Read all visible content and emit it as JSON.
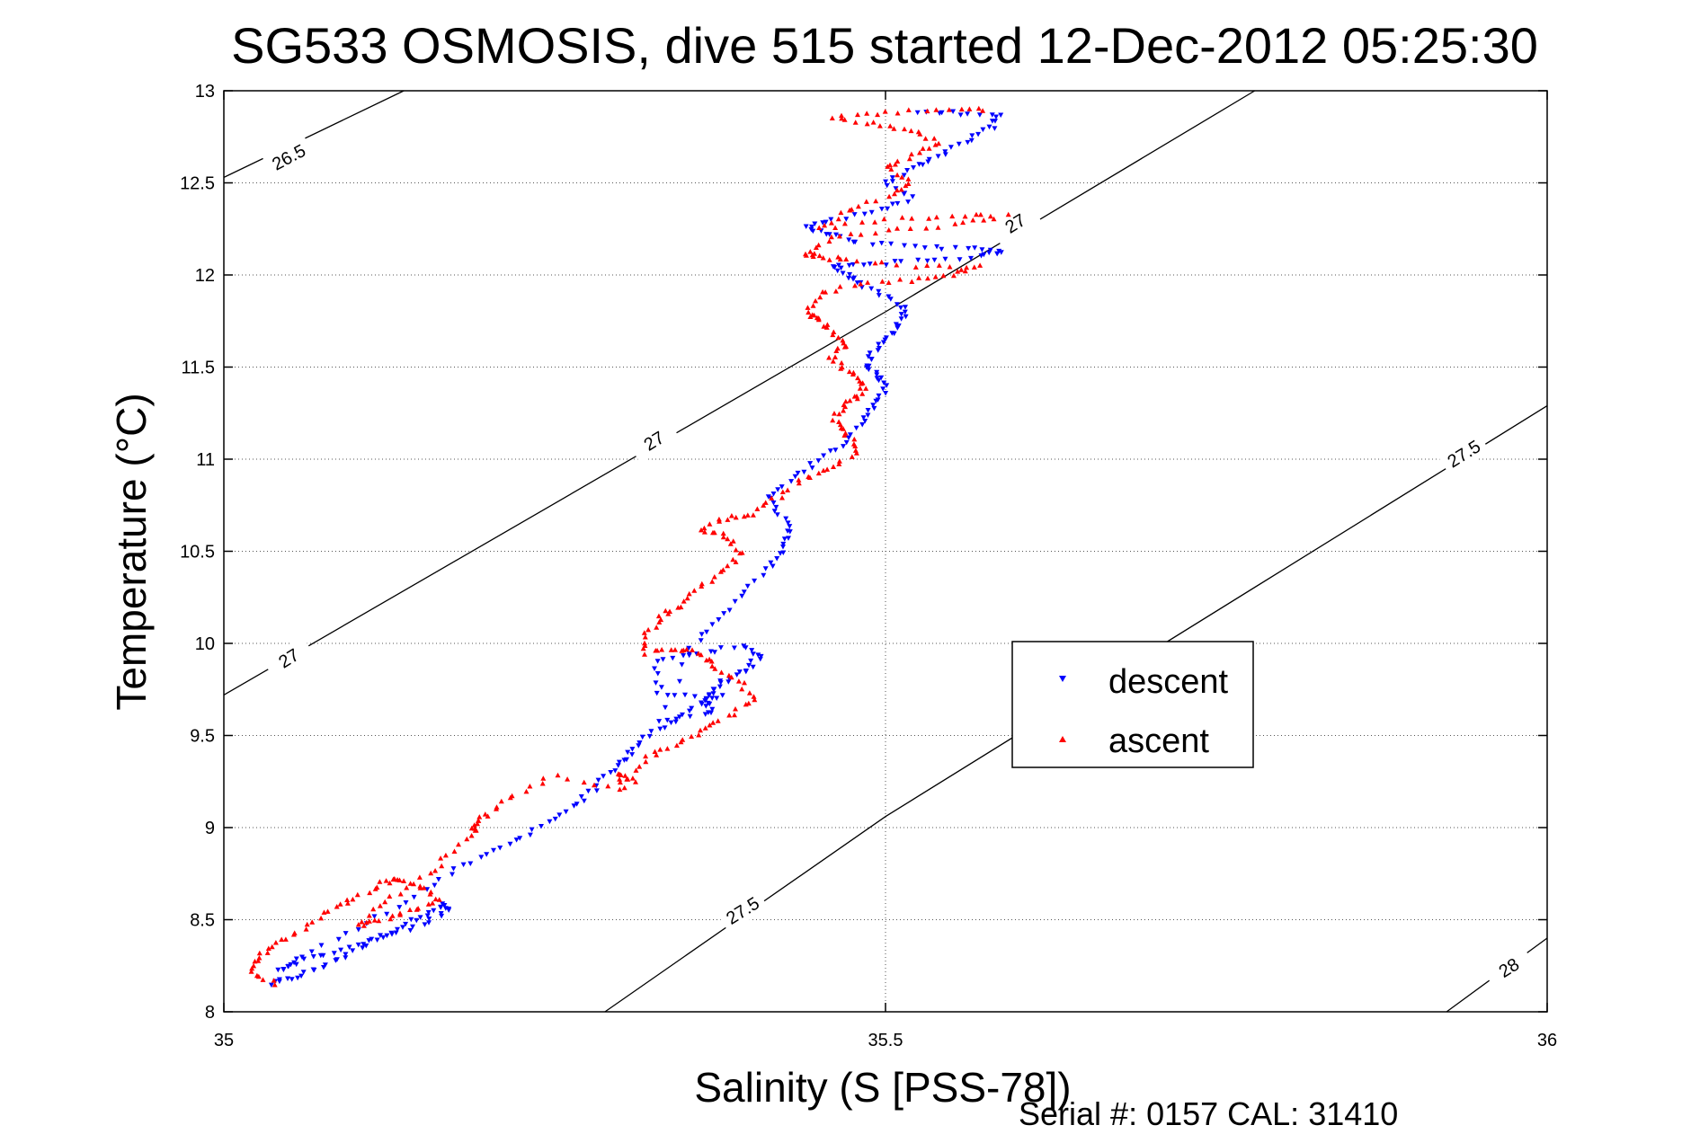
{
  "chart_data": {
    "type": "scatter",
    "title": "SG533 OSMOSIS, dive 515 started 12-Dec-2012 05:25:30",
    "xlabel": "Salinity (S [PSS-78])",
    "ylabel": "Temperature (°C)",
    "xlim": [
      35,
      36
    ],
    "ylim": [
      8,
      13
    ],
    "x_ticks": [
      "35",
      "35.5",
      "36"
    ],
    "y_ticks": [
      "8",
      "8.5",
      "9",
      "9.5",
      "10",
      "10.5",
      "11",
      "11.5",
      "12",
      "12.5",
      "13"
    ],
    "grid": true,
    "legend_position": "right-center",
    "footer": "Serial #: 0157  CAL: 31410",
    "density_contours": [
      {
        "label": "26.5",
        "points": [
          [
            35.0,
            12.53
          ],
          [
            35.136,
            13.0
          ]
        ]
      },
      {
        "label": "27",
        "points": [
          [
            35.0,
            9.72
          ],
          [
            35.5,
            11.8
          ],
          [
            35.779,
            13.0
          ]
        ]
      },
      {
        "label": "27.5",
        "points": [
          [
            35.288,
            8.0
          ],
          [
            35.5,
            9.06
          ],
          [
            36.0,
            11.29
          ]
        ]
      },
      {
        "label": "28",
        "points": [
          [
            35.924,
            8.0
          ],
          [
            36.0,
            8.4
          ]
        ]
      }
    ],
    "contour_labels": [
      {
        "text": "26.5",
        "x": 35.049,
        "y": 12.64,
        "angle": -28
      },
      {
        "text": "27",
        "x": 35.049,
        "y": 9.92,
        "angle": -32
      },
      {
        "text": "27",
        "x": 35.325,
        "y": 11.1,
        "angle": -32
      },
      {
        "text": "27",
        "x": 35.598,
        "y": 12.28,
        "angle": -32
      },
      {
        "text": "27.5",
        "x": 35.392,
        "y": 8.55,
        "angle": -32
      },
      {
        "text": "27.5",
        "x": 35.937,
        "y": 11.03,
        "angle": -32
      },
      {
        "text": "28",
        "x": 35.971,
        "y": 8.24,
        "angle": -32
      }
    ],
    "series": [
      {
        "name": "descent",
        "color": "#0000ff",
        "marker": "triangle-down",
        "path": [
          [
            35.035,
            8.15
          ],
          [
            35.05,
            8.18
          ],
          [
            35.07,
            8.23
          ],
          [
            35.09,
            8.3
          ],
          [
            35.11,
            8.38
          ],
          [
            35.13,
            8.45
          ],
          [
            35.15,
            8.52
          ],
          [
            35.165,
            8.58
          ],
          [
            35.17,
            8.55
          ],
          [
            35.15,
            8.47
          ],
          [
            35.12,
            8.4
          ],
          [
            35.09,
            8.33
          ],
          [
            35.06,
            8.28
          ],
          [
            35.04,
            8.22
          ],
          [
            35.06,
            8.3
          ],
          [
            35.1,
            8.45
          ],
          [
            35.14,
            8.6
          ],
          [
            35.17,
            8.75
          ],
          [
            35.2,
            8.85
          ],
          [
            35.225,
            8.95
          ],
          [
            35.25,
            9.05
          ],
          [
            35.27,
            9.15
          ],
          [
            35.285,
            9.25
          ],
          [
            35.3,
            9.35
          ],
          [
            35.31,
            9.42
          ],
          [
            35.32,
            9.5
          ],
          [
            35.34,
            9.58
          ],
          [
            35.36,
            9.67
          ],
          [
            35.375,
            9.72
          ],
          [
            35.33,
            9.72
          ],
          [
            35.325,
            9.9
          ],
          [
            35.36,
            9.95
          ],
          [
            35.39,
            9.98
          ],
          [
            35.405,
            9.93
          ],
          [
            35.395,
            9.86
          ],
          [
            35.38,
            9.8
          ],
          [
            35.37,
            9.75
          ],
          [
            35.365,
            9.68
          ],
          [
            35.37,
            9.62
          ],
          [
            35.33,
            9.58
          ],
          [
            35.35,
            9.95
          ],
          [
            35.37,
            10.1
          ],
          [
            35.39,
            10.25
          ],
          [
            35.41,
            10.4
          ],
          [
            35.42,
            10.5
          ],
          [
            35.43,
            10.6
          ],
          [
            35.42,
            10.7
          ],
          [
            35.41,
            10.8
          ],
          [
            35.43,
            10.9
          ],
          [
            35.45,
            11.0
          ],
          [
            35.47,
            11.1
          ],
          [
            35.485,
            11.2
          ],
          [
            35.49,
            11.3
          ],
          [
            35.5,
            11.38
          ],
          [
            35.495,
            11.45
          ],
          [
            35.485,
            11.5
          ],
          [
            35.49,
            11.58
          ],
          [
            35.5,
            11.65
          ],
          [
            35.51,
            11.72
          ],
          [
            35.515,
            11.8
          ],
          [
            35.5,
            11.88
          ],
          [
            35.48,
            11.95
          ],
          [
            35.47,
            12.0
          ],
          [
            35.46,
            12.05
          ],
          [
            35.49,
            12.06
          ],
          [
            35.53,
            12.08
          ],
          [
            35.57,
            12.1
          ],
          [
            35.59,
            12.13
          ],
          [
            35.56,
            12.15
          ],
          [
            35.52,
            12.15
          ],
          [
            35.48,
            12.18
          ],
          [
            35.46,
            12.22
          ],
          [
            35.44,
            12.26
          ],
          [
            35.46,
            12.3
          ],
          [
            35.5,
            12.35
          ],
          [
            35.52,
            12.42
          ],
          [
            35.5,
            12.5
          ],
          [
            35.52,
            12.58
          ],
          [
            35.54,
            12.65
          ],
          [
            35.56,
            12.72
          ],
          [
            35.58,
            12.8
          ],
          [
            35.585,
            12.87
          ],
          [
            35.55,
            12.88
          ],
          [
            35.52,
            12.88
          ]
        ]
      },
      {
        "name": "ascent",
        "color": "#ff0000",
        "marker": "triangle-up",
        "path": [
          [
            35.04,
            8.15
          ],
          [
            35.02,
            8.22
          ],
          [
            35.025,
            8.3
          ],
          [
            35.04,
            8.37
          ],
          [
            35.06,
            8.45
          ],
          [
            35.08,
            8.55
          ],
          [
            35.1,
            8.62
          ],
          [
            35.12,
            8.7
          ],
          [
            35.13,
            8.72
          ],
          [
            35.15,
            8.68
          ],
          [
            35.16,
            8.6
          ],
          [
            35.14,
            8.55
          ],
          [
            35.12,
            8.5
          ],
          [
            35.1,
            8.47
          ],
          [
            35.12,
            8.6
          ],
          [
            35.15,
            8.72
          ],
          [
            35.17,
            8.85
          ],
          [
            35.19,
            8.98
          ],
          [
            35.19,
            9.02
          ],
          [
            35.2,
            9.08
          ],
          [
            35.22,
            9.18
          ],
          [
            35.25,
            9.28
          ],
          [
            35.3,
            9.2
          ],
          [
            35.3,
            9.3
          ],
          [
            35.31,
            9.25
          ],
          [
            35.32,
            9.38
          ],
          [
            35.34,
            9.45
          ],
          [
            35.36,
            9.52
          ],
          [
            35.38,
            9.6
          ],
          [
            35.4,
            9.7
          ],
          [
            35.39,
            9.8
          ],
          [
            35.37,
            9.88
          ],
          [
            35.36,
            9.95
          ],
          [
            35.34,
            9.97
          ],
          [
            35.32,
            9.95
          ],
          [
            35.32,
            10.05
          ],
          [
            35.33,
            10.15
          ],
          [
            35.345,
            10.2
          ],
          [
            35.36,
            10.3
          ],
          [
            35.38,
            10.4
          ],
          [
            35.39,
            10.5
          ],
          [
            35.38,
            10.58
          ],
          [
            35.36,
            10.62
          ],
          [
            35.38,
            10.68
          ],
          [
            35.4,
            10.7
          ],
          [
            35.42,
            10.8
          ],
          [
            35.44,
            10.9
          ],
          [
            35.46,
            10.96
          ],
          [
            35.48,
            11.05
          ],
          [
            35.47,
            11.15
          ],
          [
            35.46,
            11.22
          ],
          [
            35.47,
            11.3
          ],
          [
            35.48,
            11.35
          ],
          [
            35.485,
            11.42
          ],
          [
            35.47,
            11.48
          ],
          [
            35.46,
            11.55
          ],
          [
            35.47,
            11.62
          ],
          [
            35.46,
            11.7
          ],
          [
            35.45,
            11.76
          ],
          [
            35.44,
            11.8
          ],
          [
            35.45,
            11.9
          ],
          [
            35.48,
            11.95
          ],
          [
            35.52,
            11.97
          ],
          [
            35.55,
            12.0
          ],
          [
            35.57,
            12.05
          ],
          [
            35.52,
            12.05
          ],
          [
            35.47,
            12.08
          ],
          [
            35.45,
            12.1
          ],
          [
            35.44,
            12.12
          ],
          [
            35.46,
            12.2
          ],
          [
            35.5,
            12.24
          ],
          [
            35.55,
            12.27
          ],
          [
            35.59,
            12.32
          ],
          [
            35.55,
            12.32
          ],
          [
            35.5,
            12.3
          ],
          [
            35.45,
            12.25
          ],
          [
            35.47,
            12.35
          ],
          [
            35.5,
            12.42
          ],
          [
            35.52,
            12.5
          ],
          [
            35.5,
            12.58
          ],
          [
            35.52,
            12.65
          ],
          [
            35.54,
            12.72
          ],
          [
            35.52,
            12.78
          ],
          [
            35.49,
            12.82
          ],
          [
            35.46,
            12.85
          ],
          [
            35.5,
            12.88
          ],
          [
            35.55,
            12.9
          ],
          [
            35.58,
            12.9
          ]
        ]
      }
    ]
  }
}
